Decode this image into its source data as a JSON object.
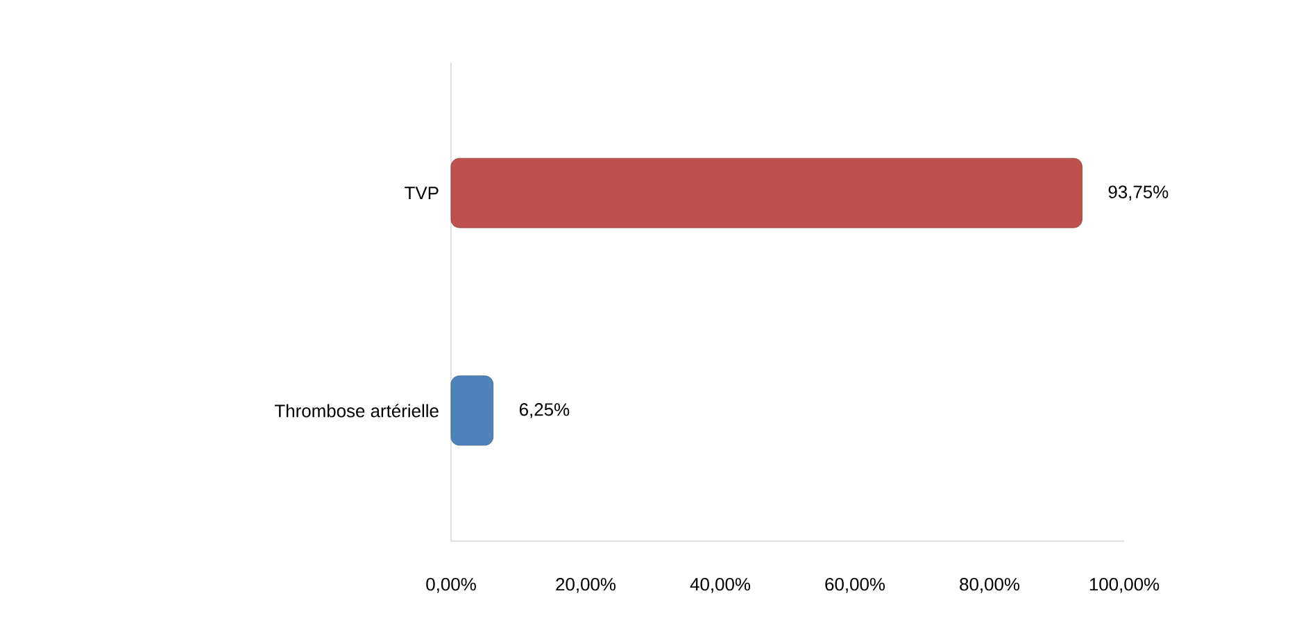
{
  "chart_data": {
    "type": "bar",
    "orientation": "horizontal",
    "categories": [
      "TVP",
      "Thrombose artérielle"
    ],
    "values": [
      93.75,
      6.25
    ],
    "colors": [
      "#c0504d",
      "#4f81bd"
    ],
    "value_labels": [
      "93,75%",
      "6,25%"
    ],
    "xlim": [
      0,
      100
    ],
    "xticks": [
      {
        "value": 0,
        "label": "0,00%"
      },
      {
        "value": 20,
        "label": "20,00%"
      },
      {
        "value": 40,
        "label": "40,00%"
      },
      {
        "value": 60,
        "label": "60,00%"
      },
      {
        "value": 80,
        "label": "80,00%"
      },
      {
        "value": 100,
        "label": "100,00%"
      }
    ],
    "grid": false
  }
}
